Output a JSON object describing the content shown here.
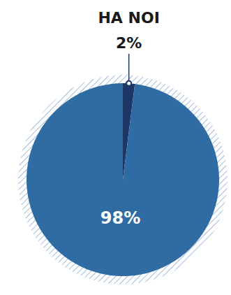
{
  "chart_data": {
    "type": "pie",
    "title": "HA NOI",
    "values": [
      2,
      98
    ],
    "value_labels": [
      "2%",
      "98%"
    ],
    "colors": [
      "#1c3766",
      "#2f6ca3"
    ],
    "data_labels": true
  }
}
